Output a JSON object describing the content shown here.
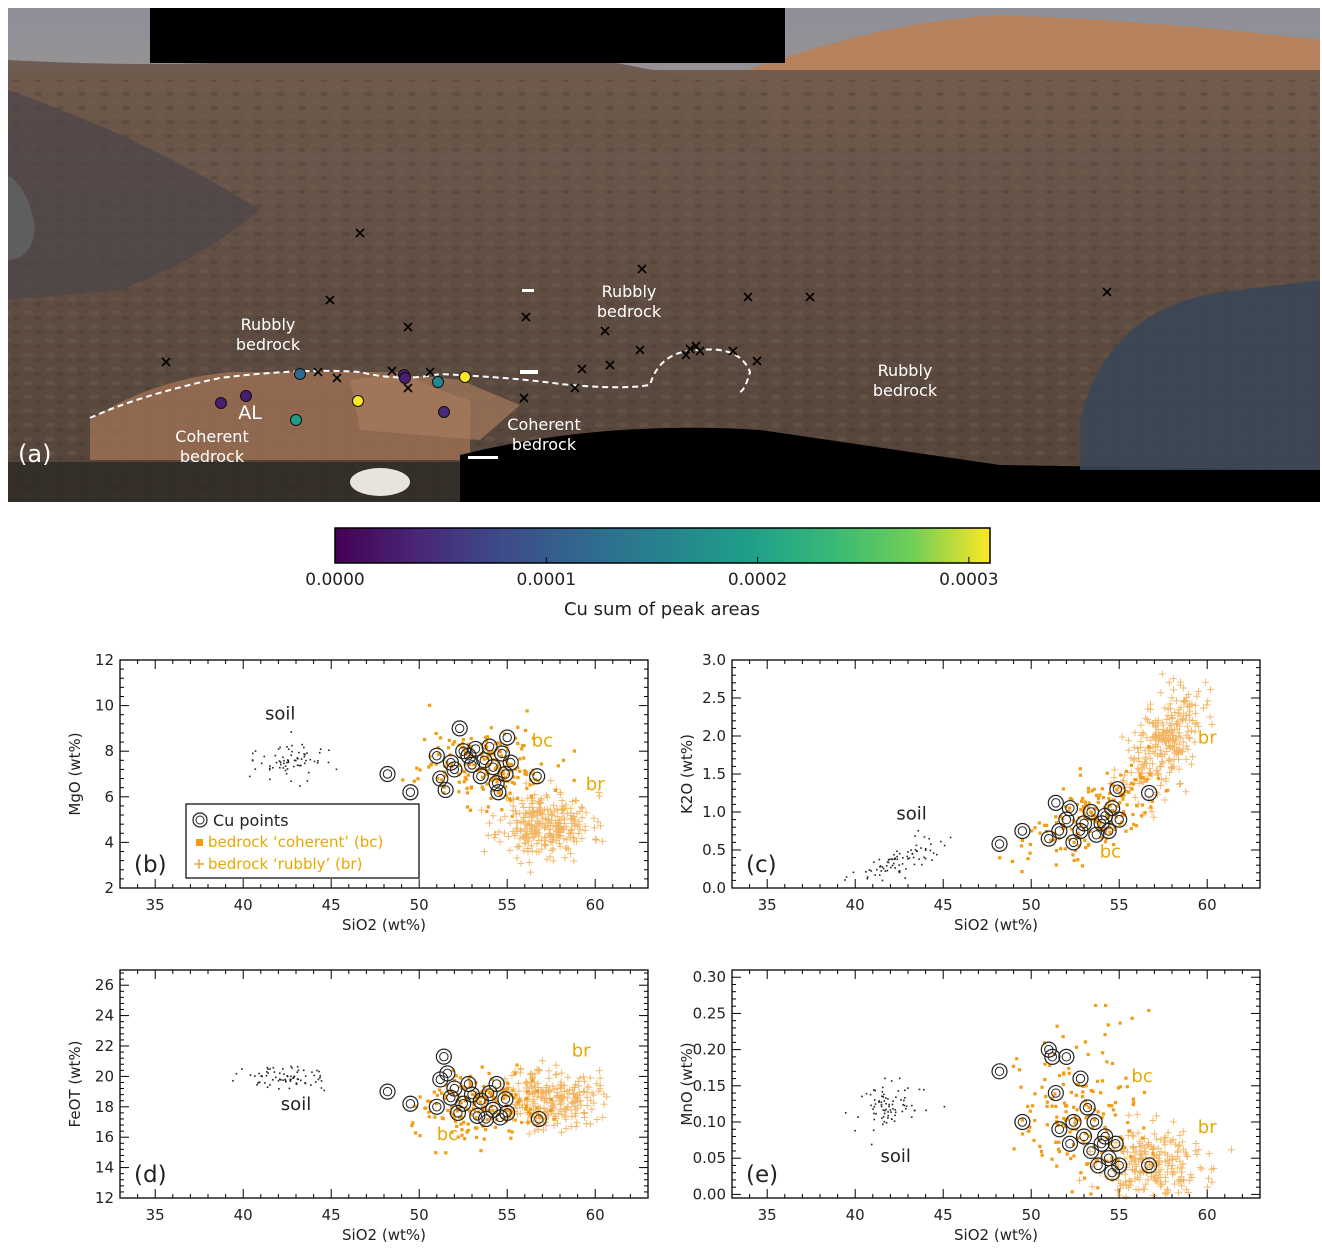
{
  "panel_a": {
    "label": "(a)",
    "annotations": [
      {
        "id": "rubbly-1",
        "lines": [
          "Rubbly",
          "bedrock"
        ]
      },
      {
        "id": "rubbly-2",
        "lines": [
          "Rubbly",
          "bedrock"
        ]
      },
      {
        "id": "rubbly-3",
        "lines": [
          "Rubbly",
          "bedrock"
        ]
      },
      {
        "id": "coherent-1",
        "lines": [
          "Coherent",
          "bedrock"
        ]
      },
      {
        "id": "coherent-2",
        "lines": [
          "Coherent",
          "bedrock"
        ]
      },
      {
        "id": "al",
        "lines": [
          "AL"
        ]
      }
    ],
    "cu_point_values": [
      0.00012,
      3e-05,
      3e-05,
      0.00016,
      0.00031,
      3e-05,
      0.00019,
      0.00031,
      4e-05,
      3e-05
    ]
  },
  "colorbar": {
    "colormap": "viridis",
    "range": [
      0.0,
      0.00031
    ],
    "ticks": [
      "0.0000",
      "0.0001",
      "0.0002",
      "0.0003"
    ],
    "tick_values": [
      0.0,
      0.0001,
      0.0002,
      0.0003
    ],
    "label": "Cu sum of peak areas"
  },
  "colors": {
    "bc": "#f39c12",
    "br": "#f0a23a",
    "soil": "#222222",
    "cu": "#222222",
    "label": "#e8a800"
  },
  "chart_data": [
    {
      "id": "b",
      "type": "scatter",
      "panel_label": "(b)",
      "xlabel": "SiO2 (wt%)",
      "ylabel": "MgO (wt%)",
      "xlim": [
        33,
        63
      ],
      "ylim": [
        2,
        12
      ],
      "xticks": [
        35,
        40,
        45,
        50,
        55,
        60
      ],
      "yticks": [
        2,
        4,
        6,
        8,
        10,
        12
      ],
      "text_labels": [
        {
          "text": "soil",
          "x": 42.1,
          "y": 9.4,
          "color": "#222222"
        },
        {
          "text": "bc",
          "x": 57.0,
          "y": 8.2,
          "color": "#e8a800"
        },
        {
          "text": "br",
          "x": 60.0,
          "y": 6.3,
          "color": "#e8a800"
        }
      ],
      "legend": {
        "position": "lower-left",
        "entries": [
          "Cu points",
          "bedrock ‘coherent’ (bc)",
          "bedrock ‘rubbly’ (br)"
        ]
      },
      "clusters": {
        "soil": {
          "cx": 42.5,
          "cy": 7.6,
          "sx": 1.0,
          "sy": 0.4,
          "n": 70
        },
        "bc": {
          "cx": 53.8,
          "cy": 7.4,
          "sx": 1.8,
          "sy": 0.9,
          "n": 190
        },
        "br": {
          "cx": 57.2,
          "cy": 4.8,
          "sx": 1.3,
          "sy": 0.7,
          "n": 300
        }
      },
      "cu_points": [
        [
          48.2,
          7.0
        ],
        [
          49.5,
          6.2
        ],
        [
          51.0,
          7.8
        ],
        [
          51.2,
          6.8
        ],
        [
          51.5,
          6.3
        ],
        [
          51.8,
          7.5
        ],
        [
          52.0,
          7.2
        ],
        [
          52.3,
          9.0
        ],
        [
          52.5,
          8.0
        ],
        [
          52.8,
          7.8
        ],
        [
          53.0,
          7.4
        ],
        [
          53.2,
          8.1
        ],
        [
          53.5,
          6.9
        ],
        [
          53.7,
          7.6
        ],
        [
          54.0,
          8.2
        ],
        [
          54.2,
          7.3
        ],
        [
          54.4,
          6.6
        ],
        [
          54.5,
          6.2
        ],
        [
          54.7,
          7.9
        ],
        [
          54.9,
          7.0
        ],
        [
          55.0,
          8.6
        ],
        [
          55.2,
          7.5
        ],
        [
          56.7,
          6.9
        ]
      ]
    },
    {
      "id": "c",
      "type": "scatter",
      "panel_label": "(c)",
      "xlabel": "SiO2 (wt%)",
      "ylabel": "K2O (wt%)",
      "xlim": [
        33,
        63
      ],
      "ylim": [
        0.0,
        3.0
      ],
      "xticks": [
        35,
        40,
        45,
        50,
        55,
        60
      ],
      "yticks": [
        0.0,
        0.5,
        1.0,
        1.5,
        2.0,
        2.5,
        3.0
      ],
      "ytick_decimals": 1,
      "text_labels": [
        {
          "text": "soil",
          "x": 43.2,
          "y": 0.9,
          "color": "#222222"
        },
        {
          "text": "bc",
          "x": 54.5,
          "y": 0.4,
          "color": "#e8a800"
        },
        {
          "text": "br",
          "x": 60.0,
          "y": 1.9,
          "color": "#e8a800"
        }
      ],
      "clusters": {
        "soil": {
          "cx": 42.3,
          "cy": 0.32,
          "sx": 1.2,
          "sy": 0.1,
          "n": 80,
          "trend": 0.09
        },
        "bc": {
          "cx": 53.5,
          "cy": 0.95,
          "sx": 1.8,
          "sy": 0.25,
          "n": 180,
          "trend": 0.1
        },
        "br": {
          "cx": 57.5,
          "cy": 1.9,
          "sx": 1.1,
          "sy": 0.3,
          "n": 280,
          "trend": 0.15
        }
      },
      "cu_points": [
        [
          48.2,
          0.58
        ],
        [
          49.5,
          0.75
        ],
        [
          51.0,
          0.65
        ],
        [
          51.4,
          1.12
        ],
        [
          51.6,
          0.75
        ],
        [
          52.0,
          0.9
        ],
        [
          52.2,
          1.05
        ],
        [
          52.4,
          0.6
        ],
        [
          52.8,
          0.75
        ],
        [
          53.0,
          0.85
        ],
        [
          53.4,
          1.0
        ],
        [
          53.7,
          0.7
        ],
        [
          54.0,
          0.85
        ],
        [
          54.2,
          0.95
        ],
        [
          54.4,
          0.75
        ],
        [
          54.6,
          1.05
        ],
        [
          54.9,
          1.3
        ],
        [
          55.0,
          0.9
        ],
        [
          56.7,
          1.25
        ]
      ]
    },
    {
      "id": "d",
      "type": "scatter",
      "panel_label": "(d)",
      "xlabel": "SiO2 (wt%)",
      "ylabel": "FeOT (wt%)",
      "xlim": [
        33,
        63
      ],
      "ylim": [
        12,
        27
      ],
      "xticks": [
        35,
        40,
        45,
        50,
        55,
        60
      ],
      "yticks": [
        12,
        14,
        16,
        18,
        20,
        22,
        24,
        26
      ],
      "text_labels": [
        {
          "text": "soil",
          "x": 43.0,
          "y": 17.8,
          "color": "#222222"
        },
        {
          "text": "bc",
          "x": 51.6,
          "y": 15.8,
          "color": "#e8a800"
        },
        {
          "text": "br",
          "x": 59.2,
          "y": 21.3,
          "color": "#e8a800"
        }
      ],
      "clusters": {
        "soil": {
          "cx": 42.5,
          "cy": 19.9,
          "sx": 1.2,
          "sy": 0.4,
          "n": 75
        },
        "bc": {
          "cx": 53.5,
          "cy": 18.2,
          "sx": 1.8,
          "sy": 1.1,
          "n": 180
        },
        "br": {
          "cx": 57.3,
          "cy": 18.6,
          "sx": 1.4,
          "sy": 1.0,
          "n": 280
        }
      },
      "cu_points": [
        [
          48.2,
          19.0
        ],
        [
          49.5,
          18.2
        ],
        [
          51.0,
          18.0
        ],
        [
          51.2,
          19.8
        ],
        [
          51.4,
          21.3
        ],
        [
          51.6,
          20.2
        ],
        [
          51.8,
          18.6
        ],
        [
          52.0,
          19.2
        ],
        [
          52.2,
          17.6
        ],
        [
          52.5,
          18.2
        ],
        [
          52.8,
          19.5
        ],
        [
          53.0,
          18.8
        ],
        [
          53.3,
          17.4
        ],
        [
          53.5,
          18.4
        ],
        [
          53.8,
          17.2
        ],
        [
          54.0,
          18.9
        ],
        [
          54.2,
          17.8
        ],
        [
          54.4,
          19.5
        ],
        [
          54.6,
          17.3
        ],
        [
          54.9,
          18.5
        ],
        [
          55.0,
          17.6
        ],
        [
          56.8,
          17.2
        ]
      ]
    },
    {
      "id": "e",
      "type": "scatter",
      "panel_label": "(e)",
      "xlabel": "SiO2 (wt%)",
      "ylabel": "MnO (wt%)",
      "xlim": [
        33,
        63
      ],
      "ylim": [
        -0.005,
        0.31
      ],
      "xticks": [
        35,
        40,
        45,
        50,
        55,
        60
      ],
      "yticks": [
        0.0,
        0.05,
        0.1,
        0.15,
        0.2,
        0.25,
        0.3
      ],
      "ytick_decimals": 2,
      "text_labels": [
        {
          "text": "soil",
          "x": 42.3,
          "y": 0.045,
          "color": "#222222"
        },
        {
          "text": "bc",
          "x": 56.3,
          "y": 0.155,
          "color": "#e8a800"
        },
        {
          "text": "br",
          "x": 60.0,
          "y": 0.085,
          "color": "#e8a800"
        }
      ],
      "clusters": {
        "soil": {
          "cx": 42.0,
          "cy": 0.12,
          "sx": 1.1,
          "sy": 0.02,
          "n": 80
        },
        "bc": {
          "cx": 53.0,
          "cy": 0.11,
          "sx": 2.0,
          "sy": 0.055,
          "n": 160
        },
        "br": {
          "cx": 57.0,
          "cy": 0.035,
          "sx": 1.6,
          "sy": 0.03,
          "n": 260
        }
      },
      "cu_points": [
        [
          48.2,
          0.17
        ],
        [
          49.5,
          0.1
        ],
        [
          51.0,
          0.2
        ],
        [
          51.2,
          0.19
        ],
        [
          51.4,
          0.14
        ],
        [
          51.6,
          0.09
        ],
        [
          52.0,
          0.19
        ],
        [
          52.2,
          0.07
        ],
        [
          52.4,
          0.1
        ],
        [
          52.8,
          0.16
        ],
        [
          53.0,
          0.08
        ],
        [
          53.2,
          0.12
        ],
        [
          53.4,
          0.06
        ],
        [
          53.6,
          0.1
        ],
        [
          53.8,
          0.04
        ],
        [
          54.0,
          0.07
        ],
        [
          54.2,
          0.08
        ],
        [
          54.4,
          0.05
        ],
        [
          54.6,
          0.03
        ],
        [
          54.8,
          0.07
        ],
        [
          55.0,
          0.04
        ],
        [
          56.7,
          0.04
        ]
      ]
    }
  ]
}
